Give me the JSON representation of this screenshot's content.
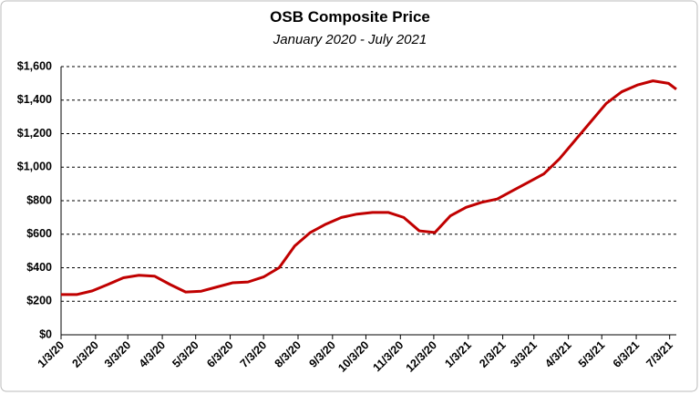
{
  "chart_data": {
    "type": "line",
    "title": "OSB Composite Price",
    "subtitle": "January 2020 - July 2021",
    "x": [
      "1/3/20",
      "1/17/20",
      "1/31/20",
      "2/14/20",
      "2/28/20",
      "3/13/20",
      "3/27/20",
      "4/10/20",
      "4/24/20",
      "5/8/20",
      "5/22/20",
      "6/5/20",
      "6/19/20",
      "7/3/20",
      "7/17/20",
      "7/31/20",
      "8/14/20",
      "8/28/20",
      "9/11/20",
      "9/25/20",
      "10/9/20",
      "10/23/20",
      "11/6/20",
      "11/20/20",
      "12/4/20",
      "12/18/20",
      "1/1/21",
      "1/15/21",
      "1/29/21",
      "2/12/21",
      "2/26/21",
      "3/12/21",
      "3/26/21",
      "4/9/21",
      "4/23/21",
      "5/7/21",
      "5/21/21",
      "6/4/21",
      "6/18/21",
      "7/2/21",
      "7/9/21"
    ],
    "series": [
      {
        "name": "OSB Composite Price",
        "color": "#c00000",
        "values": [
          240,
          240,
          262,
          300,
          340,
          355,
          350,
          300,
          255,
          260,
          285,
          310,
          315,
          345,
          400,
          530,
          610,
          660,
          700,
          720,
          730,
          730,
          700,
          620,
          610,
          710,
          760,
          790,
          810,
          860,
          910,
          960,
          1050,
          1160,
          1270,
          1380,
          1450,
          1490,
          1515,
          1500,
          1465
        ]
      }
    ],
    "xlim": [
      "1/3/20",
      "7/9/21"
    ],
    "xticks": [
      "1/3/20",
      "2/3/20",
      "3/3/20",
      "4/3/20",
      "5/3/20",
      "6/3/20",
      "7/3/20",
      "8/3/20",
      "9/3/20",
      "10/3/20",
      "11/3/20",
      "12/3/20",
      "1/3/21",
      "2/3/21",
      "3/3/21",
      "4/3/21",
      "5/3/21",
      "6/3/21",
      "7/3/21"
    ],
    "ylim": [
      0,
      1600
    ],
    "yticks": [
      {
        "value": 0,
        "label": "$0"
      },
      {
        "value": 200,
        "label": "$200"
      },
      {
        "value": 400,
        "label": "$400"
      },
      {
        "value": 600,
        "label": "$600"
      },
      {
        "value": 800,
        "label": "$800"
      },
      {
        "value": 1000,
        "label": "$1,000"
      },
      {
        "value": 1200,
        "label": "$1,200"
      },
      {
        "value": 1400,
        "label": "$1,400"
      },
      {
        "value": 1600,
        "label": "$1,600"
      }
    ],
    "grid": true
  }
}
